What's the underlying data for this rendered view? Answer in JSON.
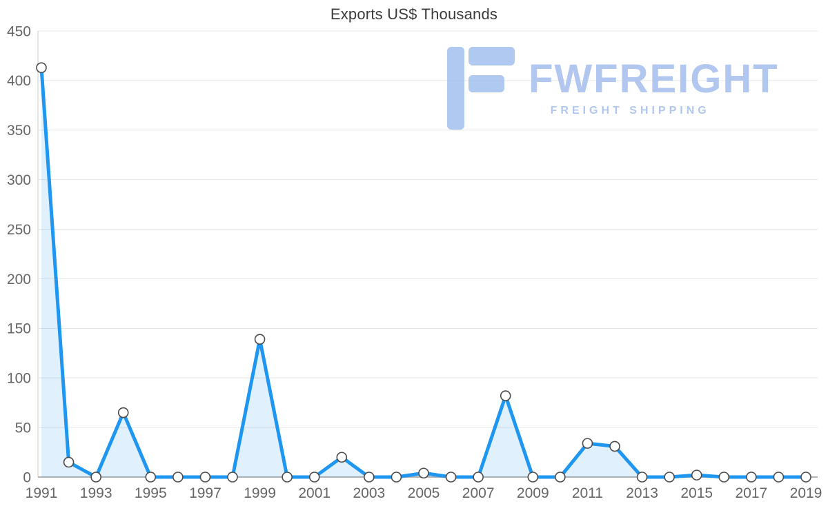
{
  "page": {
    "title": "Exports US$ Thousands"
  },
  "watermark": {
    "brand": "FWFREIGHT",
    "tagline": "FREIGHT SHIPPING"
  },
  "colors": {
    "line": "#1f97f0",
    "fill": "rgba(33,150,243,0.14)",
    "marker_fill": "#ffffff",
    "marker_stroke": "#4a4a4a",
    "grid": "#e6e6e6",
    "axis_left": "#cccccc",
    "axis_bottom": "#b3b3b3",
    "tick_text": "#666666",
    "title_text": "#3b3b3b",
    "watermark": "#b1c7ef",
    "watermark_icon": "#a3c0ee"
  },
  "chart_data": {
    "type": "area",
    "title": "Exports US$ Thousands",
    "x": [
      1991,
      1992,
      1993,
      1994,
      1995,
      1996,
      1997,
      1998,
      1999,
      2000,
      2001,
      2002,
      2003,
      2004,
      2005,
      2006,
      2007,
      2008,
      2009,
      2010,
      2011,
      2012,
      2013,
      2014,
      2015,
      2016,
      2017,
      2018,
      2019
    ],
    "values": [
      413,
      15,
      0,
      65,
      0,
      0,
      0,
      0,
      139,
      0,
      0,
      20,
      0,
      0,
      4,
      0,
      0,
      82,
      0,
      0,
      34,
      31,
      0,
      0,
      2,
      0,
      0,
      0,
      0
    ],
    "xlabel": "",
    "ylabel": "",
    "ylim": [
      0,
      450
    ],
    "yticks": [
      0,
      50,
      100,
      150,
      200,
      250,
      300,
      350,
      400,
      450
    ],
    "xtick_every": 2,
    "grid": true,
    "legend": "none"
  }
}
